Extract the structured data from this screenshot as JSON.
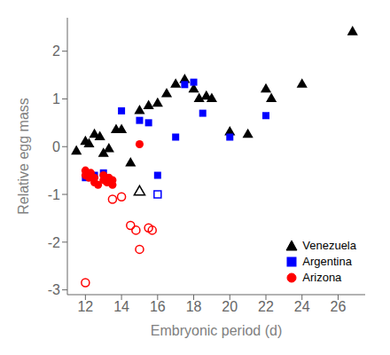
{
  "chart_data": {
    "type": "scatter",
    "x_label": "Embryonic period (d)",
    "y_label": "Relative egg mass",
    "xlim": [
      11.0,
      27.5
    ],
    "ylim": [
      -3.1,
      2.7
    ],
    "xticks": [
      12,
      14,
      16,
      18,
      20,
      22,
      24,
      26
    ],
    "yticks": [
      -3,
      -2,
      -1,
      0,
      1,
      2
    ],
    "grid": false,
    "legend": "lower right",
    "series": [
      {
        "name": "Venezuela",
        "color": "black",
        "marker": "triangle",
        "x": [
          11.5,
          12.0,
          12.2,
          12.5,
          12.8,
          13.0,
          13.3,
          13.7,
          14.0,
          14.5,
          15.0,
          15.5,
          16.0,
          16.5,
          17.0,
          17.5,
          18.0,
          18.3,
          18.7,
          19.0,
          20.0,
          21.0,
          22.0,
          22.3,
          24.0,
          26.8
        ],
        "values": [
          -0.1,
          0.1,
          0.05,
          0.25,
          0.2,
          -0.15,
          -0.05,
          0.35,
          0.35,
          -0.35,
          0.75,
          0.85,
          0.9,
          1.1,
          1.3,
          1.4,
          1.2,
          1.0,
          1.05,
          1.0,
          0.3,
          0.25,
          1.2,
          1.0,
          1.3,
          2.4
        ]
      },
      {
        "name": "Venezuela",
        "color": "black",
        "marker": "open-triangle",
        "x": [
          15.0
        ],
        "values": [
          -0.95
        ]
      },
      {
        "name": "Argentina",
        "color": "blue",
        "marker": "square",
        "x": [
          12.0,
          12.5,
          13.0,
          14.0,
          15.0,
          15.5,
          16.0,
          17.0,
          17.5,
          18.0,
          18.5,
          20.0,
          22.0
        ],
        "values": [
          -0.65,
          -0.6,
          -0.55,
          0.75,
          0.55,
          0.5,
          -0.6,
          0.2,
          1.3,
          1.35,
          0.7,
          0.2,
          0.65
        ]
      },
      {
        "name": "Argentina",
        "color": "blue",
        "marker": "open-square",
        "x": [
          16.0
        ],
        "values": [
          -1.0
        ]
      },
      {
        "name": "Arizona",
        "color": "red",
        "marker": "circle",
        "x": [
          12.0,
          12.0,
          12.2,
          12.3,
          12.5,
          12.5,
          12.7,
          13.0,
          13.0,
          13.2,
          13.3,
          13.5,
          13.5,
          15.0
        ],
        "values": [
          -0.5,
          -0.6,
          -0.65,
          -0.55,
          -0.65,
          -0.75,
          -0.8,
          -0.6,
          -0.7,
          -0.75,
          -0.65,
          -0.7,
          -0.8,
          0.05
        ]
      },
      {
        "name": "Arizona",
        "color": "red",
        "marker": "open-circle",
        "x": [
          12.0,
          13.5,
          14.0,
          14.5,
          14.8,
          15.0,
          15.5,
          15.7
        ],
        "values": [
          -2.85,
          -1.1,
          -1.05,
          -1.65,
          -1.75,
          -2.15,
          -1.7,
          -1.75
        ]
      }
    ]
  }
}
